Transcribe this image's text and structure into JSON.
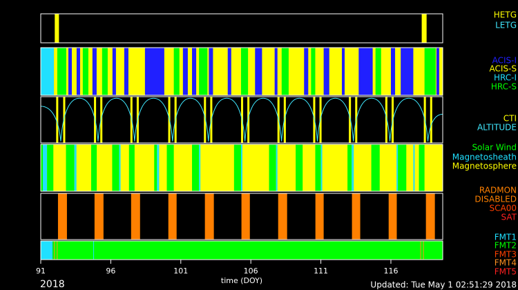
{
  "chart_data": {
    "type": "timeline",
    "xlim": [
      91,
      119.7
    ],
    "xticks": [
      91,
      96,
      101,
      106,
      111,
      116
    ],
    "xlabel": "time (DOY)",
    "year": "2018",
    "updated": "Updated: Tue May  1 02:51:29 2018",
    "panels": [
      {
        "legend": [
          {
            "name": "HETG",
            "color": "#ffff00"
          },
          {
            "name": "LETG",
            "color": "#40e8ff"
          }
        ],
        "segments": {
          "start": [
            92.0,
            118.2
          ],
          "end": [
            92.3,
            118.55
          ],
          "kind": [
            0,
            0
          ]
        }
      },
      {
        "legend": [
          {
            "name": "ACIS-I",
            "color": "#2020ff"
          },
          {
            "name": "ACIS-S",
            "color": "#ffff00"
          },
          {
            "name": "HRC-I",
            "color": "#20e0ff"
          },
          {
            "name": "HRC-S",
            "color": "#00ff00"
          }
        ],
        "segments": {
          "start": [
            91,
            91.94,
            92.18,
            92.97,
            93.56,
            94.0,
            94.69,
            95.38,
            96.12,
            96.96,
            98.44,
            100.5,
            101.15,
            101.8,
            102.3,
            103.0,
            104.35,
            105.3,
            106.3,
            107.7,
            108.2,
            109.8,
            110.3,
            111.2,
            112.5,
            113.7,
            114.9,
            116.0,
            116.7,
            118.4,
            119.25
          ],
          "end": [
            91.94,
            119.7,
            92.82,
            93.22,
            93.81,
            94.4,
            94.99,
            95.78,
            96.37,
            97.26,
            99.82,
            100.9,
            101.5,
            102.1,
            102.9,
            103.3,
            104.6,
            105.8,
            106.8,
            107.9,
            108.7,
            110.1,
            110.6,
            111.6,
            112.7,
            114.7,
            115.3,
            116.3,
            117.6,
            119.2,
            119.45
          ],
          "kind": [
            2,
            1,
            3,
            0,
            0,
            3,
            0,
            3,
            0,
            0,
            0,
            3,
            0,
            0,
            3,
            0,
            0,
            3,
            0,
            0,
            3,
            0,
            3,
            0,
            0,
            0,
            3,
            0,
            0,
            3,
            0
          ]
        }
      },
      {
        "legend": [
          {
            "name": "CTI",
            "color": "#ffff00"
          },
          {
            "name": "ALTITUDE",
            "color": "#40e8ff"
          }
        ],
        "segments": {
          "start": [
            92.1,
            92.6,
            94.8,
            95.25,
            97.4,
            97.85,
            100.1,
            100.55,
            102.65,
            103.1,
            105.3,
            105.75,
            107.9,
            108.35,
            110.45,
            110.9,
            113.0,
            113.45,
            115.6,
            116.05,
            118.35,
            118.8
          ],
          "end": [
            92.25,
            92.75,
            94.95,
            95.4,
            97.55,
            98.0,
            100.25,
            100.7,
            102.8,
            103.25,
            105.45,
            105.9,
            108.05,
            108.5,
            110.6,
            111.05,
            113.15,
            113.6,
            115.75,
            116.2,
            118.5,
            118.95
          ],
          "kind": [
            0,
            0,
            0,
            0,
            0,
            0,
            0,
            0,
            0,
            0,
            0,
            0,
            0,
            0,
            0,
            0,
            0,
            0,
            0,
            0,
            0,
            0
          ]
        },
        "line": {
          "legend": 1,
          "ylim": [
            0,
            145
          ],
          "x": [
            91,
            92.43,
            93.76,
            95.09,
            96.4,
            97.7,
            99.05,
            100.41,
            101.69,
            102.97,
            104.28,
            105.58,
            106.88,
            108.19,
            109.47,
            110.75,
            112.03,
            113.32,
            114.62,
            115.93,
            117.28,
            118.64,
            119.7
          ],
          "values": [
            115,
            5,
            140,
            5,
            140,
            5,
            140,
            5,
            140,
            5,
            140,
            5,
            140,
            5,
            140,
            5,
            140,
            5,
            140,
            5,
            140,
            5,
            90
          ]
        }
      },
      {
        "legend": [
          {
            "name": "Solar Wind",
            "color": "#00ff00"
          },
          {
            "name": "Magnetosheath",
            "color": "#20e0ff"
          },
          {
            "name": "Magnetosphere",
            "color": "#ffff00"
          }
        ],
        "segments": {
          "start": [
            91,
            91,
            91.15,
            91.45,
            92.8,
            93.4,
            94.6,
            96.1,
            96.6,
            97.3,
            99.1,
            99.3,
            100.0,
            101.8,
            102.3,
            104.8,
            105.3,
            107.3,
            107.8,
            109.2,
            110.6,
            111.0,
            112.9,
            113.2,
            114.6,
            116.4,
            116.5,
            117.6,
            118.0
          ],
          "end": [
            119.7,
            91.15,
            91.45,
            91.9,
            93.4,
            93.55,
            95.0,
            96.6,
            96.7,
            97.7,
            99.3,
            99.45,
            100.5,
            102.3,
            102.4,
            105.3,
            105.4,
            107.8,
            107.9,
            109.7,
            111.0,
            111.1,
            113.2,
            113.35,
            115.2,
            116.5,
            117.1,
            117.7,
            118.4
          ],
          "kind": [
            2,
            0,
            1,
            0,
            0,
            1,
            0,
            0,
            1,
            0,
            0,
            1,
            0,
            0,
            1,
            0,
            1,
            0,
            1,
            0,
            0,
            1,
            0,
            1,
            0,
            1,
            0,
            1,
            0
          ]
        }
      },
      {
        "legend": [
          {
            "name": "RADMON",
            "color": "#ff8000"
          },
          {
            "name": "DISABLED",
            "color": "#ff8000"
          },
          {
            "name": "SCA00",
            "color": "#ff4000"
          },
          {
            "name": "SAT",
            "color": "#ff2020"
          }
        ],
        "segments": {
          "start": [
            92.23,
            94.84,
            97.45,
            100.11,
            102.72,
            105.33,
            107.95,
            110.61,
            113.22,
            115.84,
            118.5
          ],
          "end": [
            92.87,
            95.48,
            98.09,
            100.7,
            103.36,
            105.93,
            108.59,
            111.2,
            113.81,
            116.42,
            119.14
          ],
          "kind": [
            1,
            1,
            1,
            1,
            1,
            1,
            1,
            1,
            1,
            1,
            1
          ]
        }
      },
      {
        "legend": [
          {
            "name": "FMT1",
            "color": "#20e0ff"
          },
          {
            "name": "FMT2",
            "color": "#00ff00"
          },
          {
            "name": "FMT3",
            "color": "#ff4000"
          },
          {
            "name": "FMT4",
            "color": "#ff9020"
          },
          {
            "name": "FMT5",
            "color": "#ff2020"
          }
        ],
        "segments": {
          "start": [
            91,
            91.85,
            91.95,
            92.15,
            94.75,
            118.1,
            118.3
          ],
          "end": [
            91.85,
            119.7,
            92.0,
            92.2,
            94.8,
            118.15,
            118.35
          ],
          "kind": [
            0,
            1,
            3,
            3,
            0,
            3,
            3
          ]
        }
      }
    ]
  }
}
